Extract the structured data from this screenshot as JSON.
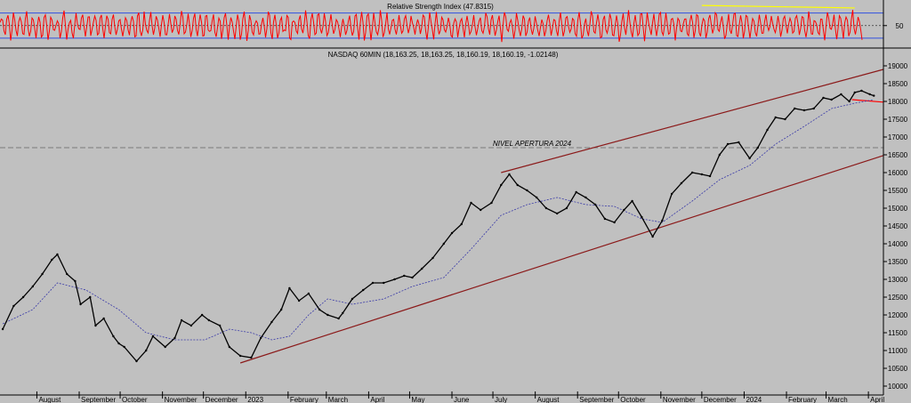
{
  "chart_data": [
    {
      "type": "line",
      "title": "Relative Strength Index (47.8315)",
      "ylim": [
        20,
        85
      ],
      "tick_labels": [
        "50"
      ],
      "tick_values": [
        50
      ],
      "reference_levels": [
        30,
        70
      ],
      "midline": 50,
      "series": [],
      "notes_lines": [
        {
          "from": {
            "x": "2023-12-01",
            "y": 82
          },
          "to": {
            "x": "2024-03-22",
            "y": 78
          },
          "color": "#ffff00"
        }
      ],
      "grid": false,
      "colors": {
        "rsi": "#ff0000",
        "levels": "#3050e0",
        "midline": "#333333",
        "divergence": "#ffff00"
      }
    },
    {
      "type": "line",
      "title": "NASDAQ 60MIN (18,163.25, 18,163.25, 18,160.19, 18,160.19, -1.02148)",
      "xlabel": "",
      "ylabel": "",
      "ylim": [
        9950,
        19050
      ],
      "yticks": [
        10000,
        10500,
        11000,
        11500,
        12000,
        12500,
        13000,
        13500,
        14000,
        14500,
        15000,
        15500,
        16000,
        16500,
        17000,
        17500,
        18000,
        18500,
        19000
      ],
      "xtick_labels": [
        "August",
        "September",
        "October",
        "November",
        "December",
        "2023",
        "February",
        "March",
        "April",
        "May",
        "June",
        "July",
        "August",
        "September",
        "October",
        "November",
        "December",
        "2024",
        "February",
        "March",
        "April"
      ],
      "xtick_dates": [
        "2022-08-01",
        "2022-09-01",
        "2022-10-01",
        "2022-11-01",
        "2022-12-01",
        "2023-01-01",
        "2023-02-01",
        "2023-03-01",
        "2023-04-01",
        "2023-05-01",
        "2023-06-01",
        "2023-07-01",
        "2023-08-01",
        "2023-09-01",
        "2023-10-01",
        "2023-11-01",
        "2023-12-01",
        "2024-01-01",
        "2024-02-01",
        "2024-03-01",
        "2024-04-01"
      ],
      "horizontal_line": {
        "value": 16700,
        "label": "NIVEL APERTURA 2024",
        "color": "#7a7a7a"
      },
      "series": [
        {
          "kind": "price",
          "color": "#000000",
          "x": [
            "2022-07-07",
            "2022-07-15",
            "2022-07-22",
            "2022-07-29",
            "2022-08-05",
            "2022-08-12",
            "2022-08-16",
            "2022-08-23",
            "2022-08-29",
            "2022-09-02",
            "2022-09-09",
            "2022-09-13",
            "2022-09-19",
            "2022-09-26",
            "2022-09-30",
            "2022-10-04",
            "2022-10-13",
            "2022-10-20",
            "2022-10-25",
            "2022-11-03",
            "2022-11-10",
            "2022-11-15",
            "2022-11-22",
            "2022-11-30",
            "2022-12-05",
            "2022-12-13",
            "2022-12-20",
            "2022-12-28",
            "2023-01-05",
            "2023-01-12",
            "2023-01-20",
            "2023-01-27",
            "2023-02-02",
            "2023-02-09",
            "2023-02-16",
            "2023-02-24",
            "2023-03-02",
            "2023-03-10",
            "2023-03-13",
            "2023-03-20",
            "2023-03-28",
            "2023-04-04",
            "2023-04-12",
            "2023-04-20",
            "2023-04-27",
            "2023-05-03",
            "2023-05-10",
            "2023-05-18",
            "2023-05-26",
            "2023-06-01",
            "2023-06-08",
            "2023-06-15",
            "2023-06-22",
            "2023-06-30",
            "2023-07-07",
            "2023-07-13",
            "2023-07-19",
            "2023-07-26",
            "2023-08-02",
            "2023-08-09",
            "2023-08-17",
            "2023-08-24",
            "2023-08-31",
            "2023-09-07",
            "2023-09-14",
            "2023-09-21",
            "2023-09-28",
            "2023-10-05",
            "2023-10-11",
            "2023-10-18",
            "2023-10-26",
            "2023-11-02",
            "2023-11-09",
            "2023-11-16",
            "2023-11-24",
            "2023-12-01",
            "2023-12-07",
            "2023-12-14",
            "2023-12-20",
            "2023-12-28",
            "2024-01-05",
            "2024-01-11",
            "2024-01-18",
            "2024-01-24",
            "2024-01-31",
            "2024-02-07",
            "2024-02-14",
            "2024-02-21",
            "2024-02-28",
            "2024-03-05",
            "2024-03-12",
            "2024-03-18",
            "2024-03-22",
            "2024-03-27",
            "2024-04-02",
            "2024-04-05"
          ],
          "values": [
            11600,
            12250,
            12500,
            12800,
            13150,
            13550,
            13700,
            13150,
            12950,
            12300,
            12500,
            11700,
            11900,
            11400,
            11200,
            11100,
            10700,
            11000,
            11400,
            11100,
            11350,
            11850,
            11700,
            12000,
            11850,
            11700,
            11100,
            10850,
            10800,
            11350,
            11800,
            12150,
            12750,
            12400,
            12600,
            12150,
            12000,
            11900,
            12050,
            12450,
            12700,
            12900,
            12900,
            13000,
            13100,
            13050,
            13300,
            13600,
            14000,
            14300,
            14550,
            15150,
            14950,
            15150,
            15650,
            15950,
            15650,
            15500,
            15300,
            15000,
            14850,
            15000,
            15450,
            15300,
            15100,
            14700,
            14600,
            14950,
            15200,
            14750,
            14200,
            14650,
            15400,
            15700,
            16000,
            15950,
            15900,
            16500,
            16800,
            16850,
            16400,
            16700,
            17200,
            17550,
            17500,
            17800,
            17750,
            17800,
            18100,
            18050,
            18200,
            18000,
            18250,
            18300,
            18200,
            18160
          ]
        },
        {
          "kind": "moving-average",
          "color": "#3a3aa8",
          "x": [
            "2022-07-07",
            "2022-07-29",
            "2022-08-16",
            "2022-09-06",
            "2022-09-30",
            "2022-10-20",
            "2022-11-10",
            "2022-12-02",
            "2022-12-20",
            "2023-01-05",
            "2023-01-20",
            "2023-02-02",
            "2023-02-16",
            "2023-03-02",
            "2023-03-20",
            "2023-04-12",
            "2023-05-03",
            "2023-05-26",
            "2023-06-15",
            "2023-07-07",
            "2023-07-26",
            "2023-08-17",
            "2023-09-07",
            "2023-09-28",
            "2023-10-18",
            "2023-11-02",
            "2023-11-24",
            "2023-12-14",
            "2024-01-05",
            "2024-01-24",
            "2024-02-14",
            "2024-03-05",
            "2024-03-22",
            "2024-04-05"
          ],
          "values": [
            11750,
            12150,
            12900,
            12700,
            12150,
            11500,
            11300,
            11300,
            11600,
            11500,
            11300,
            11400,
            12000,
            12450,
            12300,
            12450,
            12800,
            13050,
            13850,
            14800,
            15100,
            15300,
            15100,
            15050,
            14700,
            14600,
            15200,
            15800,
            16200,
            16800,
            17300,
            17800,
            17950,
            18050
          ]
        }
      ],
      "trendlines": [
        {
          "from": {
            "x": "2022-12-28",
            "y": 10650
          },
          "to": {
            "x": "2024-04-12",
            "y": 16480
          },
          "color": "#8b1a1a"
        },
        {
          "from": {
            "x": "2023-07-07",
            "y": 16000
          },
          "to": {
            "x": "2024-04-12",
            "y": 18900
          },
          "color": "#8b1a1a"
        },
        {
          "from": {
            "x": "2024-03-20",
            "y": 18050
          },
          "to": {
            "x": "2024-04-12",
            "y": 17980
          },
          "color": "#ff0000"
        }
      ],
      "grid": false
    }
  ],
  "colors": {
    "background": "#c0c0c0",
    "axis": "#000000"
  }
}
